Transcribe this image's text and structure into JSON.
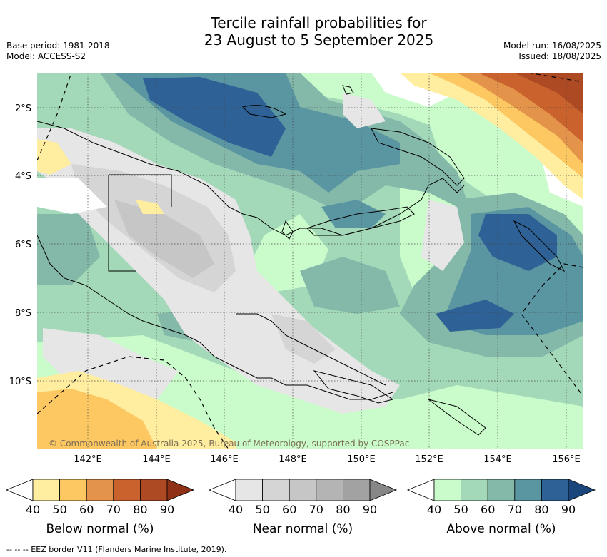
{
  "title": {
    "line1": "Tercile rainfall probabilities for",
    "line2": "23 August to 5 September 2025"
  },
  "meta": {
    "base_period": "Base period: 1981-2018",
    "model": "Model: ACCESS-S2",
    "model_run": "Model run: 16/08/2025",
    "issued": "Issued: 18/08/2025"
  },
  "map": {
    "lon_labels": [
      "142°E",
      "144°E",
      "146°E",
      "148°E",
      "150°E",
      "152°E",
      "154°E",
      "156°E"
    ],
    "lat_labels": [
      "2°S",
      "4°S",
      "6°S",
      "8°S",
      "10°S"
    ],
    "copyright": "© Commonwealth of Australia 2025, Bureau of Meteorology, supported by COSPPac"
  },
  "colorbars": [
    {
      "label": "Below normal (%)",
      "ticks": [
        "40",
        "50",
        "60",
        "70",
        "80",
        "90"
      ],
      "colors": [
        "#ffeda0",
        "#fdc862",
        "#e3934a",
        "#c9622d",
        "#ad4a23",
        "#8e3117"
      ]
    },
    {
      "label": "Near normal (%)",
      "ticks": [
        "40",
        "50",
        "60",
        "70",
        "80",
        "90"
      ],
      "colors": [
        "#e6e6e6",
        "#d5d5d5",
        "#c6c6c6",
        "#b4b4b4",
        "#a2a2a2",
        "#878787"
      ]
    },
    {
      "label": "Above normal (%)",
      "ticks": [
        "40",
        "50",
        "60",
        "70",
        "80",
        "90"
      ],
      "colors": [
        "#c9fcca",
        "#a3d8b9",
        "#84b9aa",
        "#5a95a2",
        "#2e6196",
        "#1a467c"
      ]
    }
  ],
  "footer": "--  --  -- EEZ border V11 (Flanders Marine Institute, 2019)."
}
